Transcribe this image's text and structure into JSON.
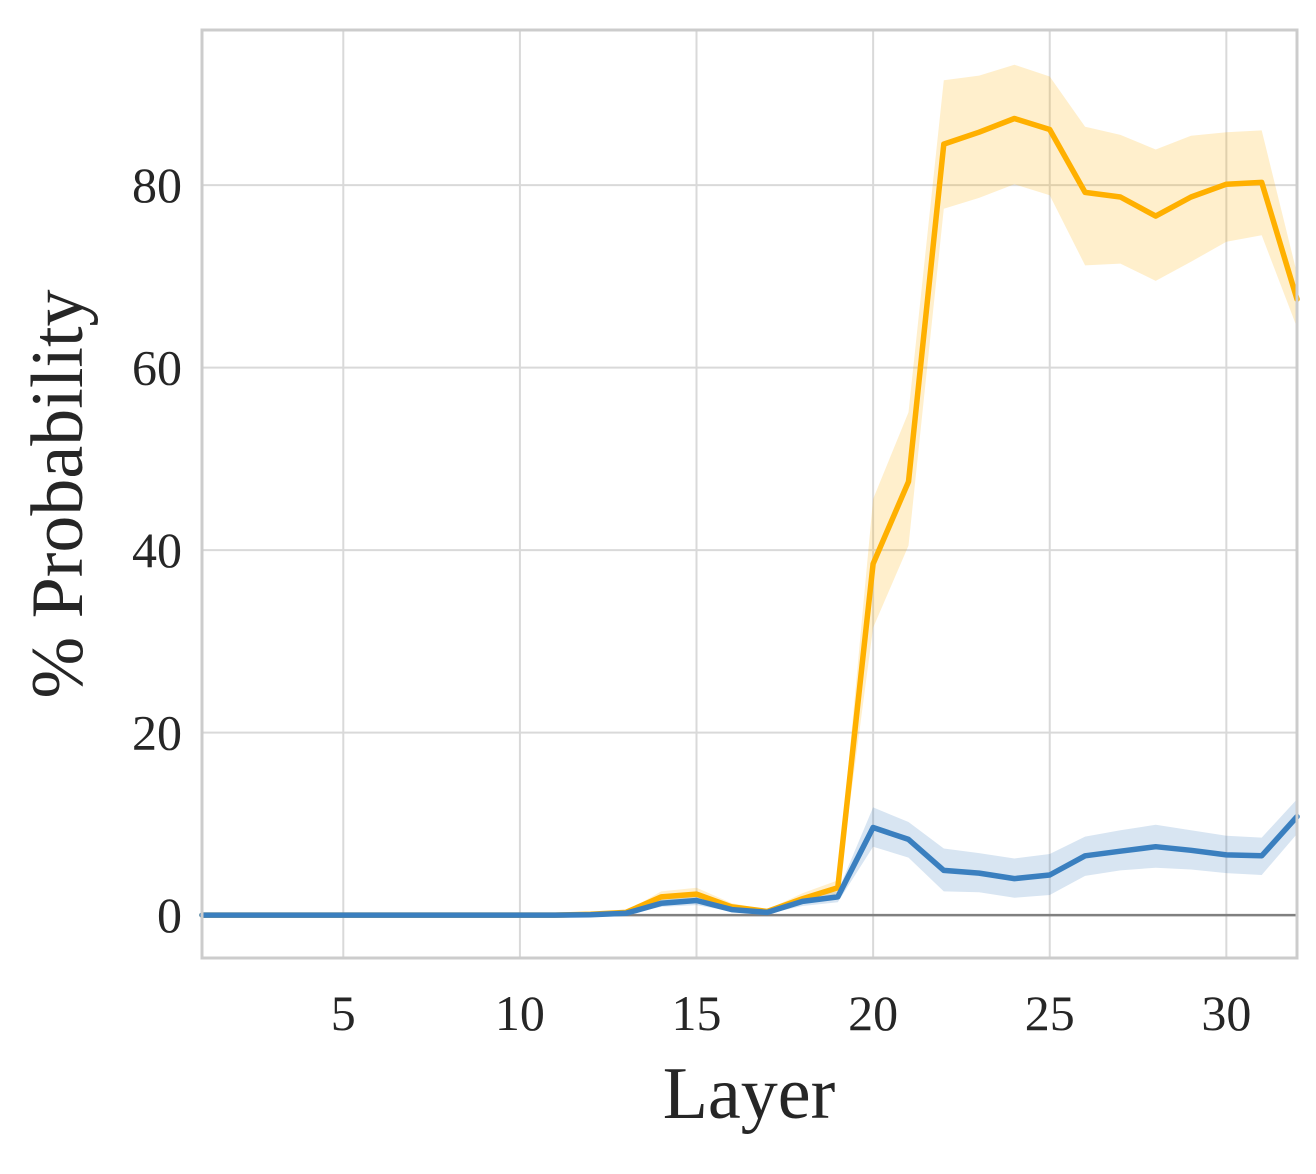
{
  "chart_data": {
    "type": "line",
    "xlabel": "Layer",
    "ylabel": "% Probability",
    "xlim": [
      1,
      32
    ],
    "ylim": [
      -4.7,
      97
    ],
    "xticks": [
      5,
      10,
      15,
      20,
      25,
      30
    ],
    "yticks": [
      0,
      20,
      40,
      60,
      80
    ],
    "grid": true,
    "zero_line": true,
    "x": [
      1,
      2,
      3,
      4,
      5,
      6,
      7,
      8,
      9,
      10,
      11,
      12,
      13,
      14,
      15,
      16,
      17,
      18,
      19,
      20,
      21,
      22,
      23,
      24,
      25,
      26,
      27,
      28,
      29,
      30,
      31,
      32
    ],
    "series": [
      {
        "color": "#FFB000",
        "values": [
          0,
          0,
          0,
          0,
          0,
          0,
          0,
          0,
          0,
          0,
          0,
          0.1,
          0.3,
          2.0,
          2.3,
          0.9,
          0.4,
          1.8,
          3.0,
          38.5,
          47.5,
          84.5,
          85.8,
          87.3,
          86.1,
          79.2,
          78.7,
          76.6,
          78.7,
          80.1,
          80.3,
          67.5
        ],
        "lower": [
          0,
          0,
          0,
          0,
          0,
          0,
          0,
          0,
          0,
          0,
          0,
          0.05,
          0.2,
          1.4,
          1.6,
          0.6,
          0.2,
          1.2,
          2.2,
          31.5,
          40.5,
          77.4,
          78.6,
          80.1,
          78.9,
          71.2,
          71.4,
          69.5,
          71.6,
          73.8,
          74.5,
          64.4
        ],
        "upper": [
          0,
          0,
          0,
          0,
          0,
          0,
          0,
          0,
          0,
          0,
          0,
          0.15,
          0.4,
          2.6,
          3.0,
          1.3,
          0.6,
          2.4,
          3.8,
          45.6,
          55.1,
          91.5,
          92.0,
          93.2,
          91.9,
          86.4,
          85.5,
          83.9,
          85.4,
          85.8,
          86.0,
          70.3
        ]
      },
      {
        "color": "#3A7FBF",
        "values": [
          0,
          0,
          0,
          0,
          0,
          0,
          0,
          0,
          0,
          0,
          0,
          0.05,
          0.2,
          1.3,
          1.6,
          0.6,
          0.3,
          1.5,
          2.0,
          9.6,
          8.3,
          4.9,
          4.6,
          4.0,
          4.4,
          6.5,
          7.0,
          7.5,
          7.1,
          6.6,
          6.5,
          10.8
        ],
        "lower": [
          0,
          0,
          0,
          0,
          0,
          0,
          0,
          0,
          0,
          0,
          0,
          0.02,
          0.1,
          0.9,
          1.1,
          0.4,
          0.15,
          1.0,
          1.4,
          7.5,
          6.3,
          2.6,
          2.5,
          1.9,
          2.2,
          4.3,
          4.9,
          5.2,
          5.0,
          4.6,
          4.4,
          8.9
        ],
        "upper": [
          0,
          0,
          0,
          0,
          0,
          0,
          0,
          0,
          0,
          0,
          0,
          0.08,
          0.3,
          1.7,
          2.1,
          0.8,
          0.45,
          2.0,
          2.6,
          11.8,
          10.2,
          7.3,
          6.8,
          6.2,
          6.7,
          8.6,
          9.3,
          9.9,
          9.3,
          8.7,
          8.5,
          12.7
        ]
      }
    ]
  }
}
